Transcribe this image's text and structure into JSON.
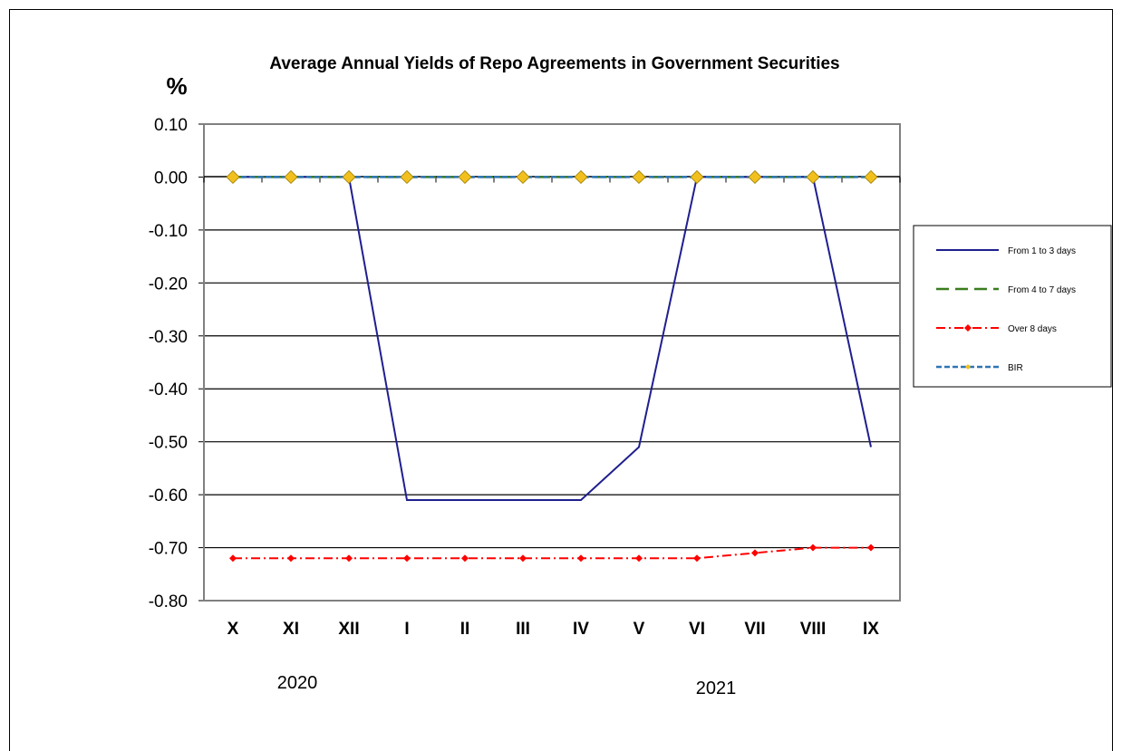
{
  "chart_data": {
    "type": "line",
    "title": "Average Annual Yields of Repo Agreements in Government Securities",
    "ylabel": "%",
    "xlabel": "",
    "ylim": [
      -0.8,
      0.1
    ],
    "yticks": [
      "0.10",
      "0.00",
      "-0.10",
      "-0.20",
      "-0.30",
      "-0.40",
      "-0.50",
      "-0.60",
      "-0.70",
      "-0.80"
    ],
    "ytick_values": [
      0.1,
      0.0,
      -0.1,
      -0.2,
      -0.3,
      -0.4,
      -0.5,
      -0.6,
      -0.7,
      -0.8
    ],
    "categories": [
      "X",
      "XI",
      "XII",
      "I",
      "II",
      "III",
      "IV",
      "V",
      "VI",
      "VII",
      "VIII",
      "IX"
    ],
    "year_labels": [
      "2020",
      "2021"
    ],
    "grid": true,
    "legend_position": "right",
    "series": [
      {
        "name": "From 1 to 3 days",
        "color": "#1f1f8f",
        "values": [
          0,
          0,
          0,
          -0.61,
          -0.61,
          -0.61,
          -0.61,
          -0.51,
          0,
          0,
          0,
          -0.51
        ]
      },
      {
        "name": "From 4 to 7 days",
        "color": "#3a7d1e",
        "values": [
          0,
          0,
          0,
          0,
          0,
          0,
          0,
          0,
          0,
          0,
          0,
          0
        ]
      },
      {
        "name": "Over 8 days",
        "color": "#ff0000",
        "values": [
          -0.72,
          -0.72,
          -0.72,
          -0.72,
          -0.72,
          -0.72,
          -0.72,
          -0.72,
          -0.72,
          -0.71,
          -0.7,
          -0.7
        ]
      },
      {
        "name": "BIR",
        "color": "#2e75b6",
        "marker_color": "#f2c01e",
        "values": [
          0,
          0,
          0,
          0,
          0,
          0,
          0,
          0,
          0,
          0,
          0,
          0
        ]
      }
    ]
  }
}
